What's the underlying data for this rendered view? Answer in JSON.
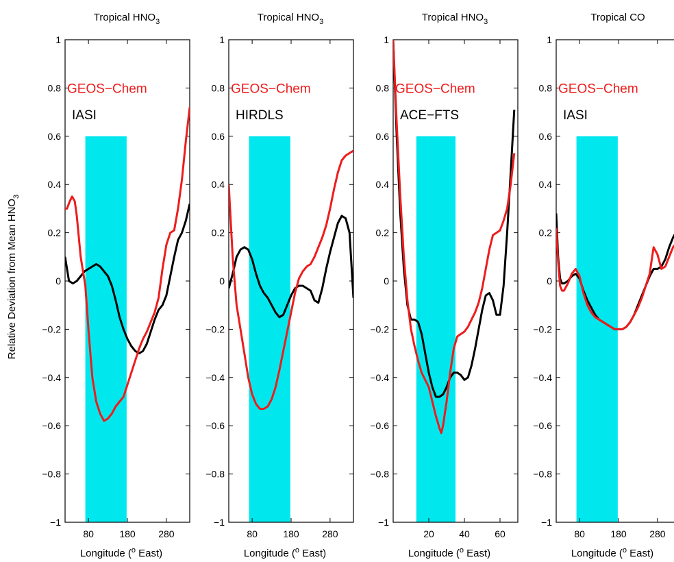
{
  "figure": {
    "ylabel": "Relative Deviation from Mean HNO",
    "ylabel_sub": "3",
    "xlabel_pre": "Longitude (",
    "xlabel_sup": "o",
    "xlabel_post": " East)",
    "highlight_color": "#00e8ee",
    "colors": {
      "model": "#ee1c1c",
      "obs": "#000000"
    }
  },
  "chart_data": [
    {
      "type": "line",
      "title": "Tropical HNO",
      "title_sub": "3",
      "xlim": [
        20,
        340
      ],
      "ylim": [
        -1,
        1
      ],
      "xticks": [
        80,
        180,
        280
      ],
      "yticks": [
        -1,
        -0.8,
        -0.6,
        -0.4,
        -0.2,
        0,
        0.2,
        0.4,
        0.6,
        0.8,
        1
      ],
      "ytick_labels": [
        "−1",
        "−0.8",
        "−0.6",
        "−0.4",
        "−0.2",
        "0",
        "0.2",
        "0.4",
        "0.6",
        "0.8",
        "1"
      ],
      "highlight": {
        "x": [
          72,
          178
        ],
        "y": [
          -1,
          0.6
        ]
      },
      "legend": [
        "GEOS−Chem",
        "IASI"
      ],
      "series": [
        {
          "name": "GEOS−Chem",
          "x": [
            20,
            25,
            32,
            38,
            45,
            50,
            60,
            72,
            80,
            90,
            100,
            110,
            120,
            130,
            140,
            150,
            160,
            170,
            180,
            190,
            200,
            210,
            220,
            230,
            240,
            250,
            260,
            270,
            280,
            290,
            300,
            310,
            320,
            330,
            340
          ],
          "y": [
            0.3,
            0.3,
            0.33,
            0.35,
            0.33,
            0.27,
            0.1,
            -0.02,
            -0.2,
            -0.4,
            -0.5,
            -0.55,
            -0.58,
            -0.57,
            -0.55,
            -0.52,
            -0.5,
            -0.48,
            -0.43,
            -0.38,
            -0.33,
            -0.28,
            -0.24,
            -0.21,
            -0.17,
            -0.13,
            -0.07,
            0.05,
            0.15,
            0.2,
            0.21,
            0.3,
            0.42,
            0.58,
            0.72
          ]
        },
        {
          "name": "IASI",
          "x": [
            20,
            30,
            40,
            50,
            60,
            70,
            80,
            90,
            100,
            110,
            120,
            130,
            140,
            150,
            160,
            170,
            180,
            190,
            200,
            210,
            220,
            230,
            240,
            250,
            260,
            270,
            280,
            290,
            300,
            310,
            320,
            330,
            340
          ],
          "y": [
            0.1,
            0.0,
            -0.01,
            0.0,
            0.02,
            0.04,
            0.05,
            0.06,
            0.07,
            0.06,
            0.04,
            0.02,
            -0.02,
            -0.08,
            -0.15,
            -0.2,
            -0.24,
            -0.27,
            -0.29,
            -0.3,
            -0.29,
            -0.26,
            -0.21,
            -0.16,
            -0.12,
            -0.1,
            -0.06,
            0.02,
            0.1,
            0.17,
            0.2,
            0.25,
            0.32
          ]
        }
      ]
    },
    {
      "type": "line",
      "title": "Tropical HNO",
      "title_sub": "3",
      "xlim": [
        20,
        340
      ],
      "ylim": [
        -1,
        1
      ],
      "xticks": [
        80,
        180,
        280
      ],
      "yticks": [
        -1,
        -0.8,
        -0.6,
        -0.4,
        -0.2,
        0,
        0.2,
        0.4,
        0.6,
        0.8,
        1
      ],
      "ytick_labels": [
        "−1",
        "−0.8",
        "−0.6",
        "−0.4",
        "−0.2",
        "0",
        "0.2",
        "0.4",
        "0.6",
        "0.8",
        "1"
      ],
      "highlight": {
        "x": [
          72,
          178
        ],
        "y": [
          -1,
          0.6
        ]
      },
      "legend": [
        "GEOS−Chem",
        "HIRDLS"
      ],
      "series": [
        {
          "name": "GEOS−Chem",
          "x": [
            20,
            25,
            30,
            35,
            40,
            50,
            60,
            70,
            80,
            90,
            100,
            110,
            120,
            130,
            140,
            150,
            160,
            170,
            180,
            190,
            200,
            210,
            220,
            230,
            240,
            250,
            260,
            270,
            280,
            290,
            300,
            310,
            320,
            330,
            340
          ],
          "y": [
            0.4,
            0.25,
            0.1,
            0.0,
            -0.1,
            -0.2,
            -0.3,
            -0.4,
            -0.47,
            -0.51,
            -0.53,
            -0.53,
            -0.52,
            -0.49,
            -0.44,
            -0.37,
            -0.29,
            -0.21,
            -0.13,
            -0.05,
            0.01,
            0.04,
            0.06,
            0.07,
            0.1,
            0.14,
            0.18,
            0.23,
            0.3,
            0.38,
            0.45,
            0.5,
            0.52,
            0.53,
            0.54
          ]
        },
        {
          "name": "HIRDLS",
          "x": [
            20,
            30,
            40,
            50,
            60,
            70,
            80,
            90,
            100,
            110,
            120,
            130,
            140,
            150,
            160,
            170,
            180,
            190,
            200,
            210,
            220,
            230,
            240,
            250,
            260,
            270,
            280,
            290,
            300,
            310,
            320,
            330,
            340
          ],
          "y": [
            -0.03,
            0.03,
            0.1,
            0.13,
            0.14,
            0.13,
            0.09,
            0.03,
            -0.02,
            -0.05,
            -0.07,
            -0.1,
            -0.13,
            -0.15,
            -0.14,
            -0.1,
            -0.06,
            -0.03,
            -0.02,
            -0.02,
            -0.03,
            -0.04,
            -0.08,
            -0.09,
            -0.03,
            0.05,
            0.12,
            0.18,
            0.24,
            0.27,
            0.26,
            0.2,
            -0.07
          ]
        }
      ]
    },
    {
      "type": "line",
      "title": "Tropical HNO",
      "title_sub": "3",
      "xlim": [
        0,
        70
      ],
      "ylim": [
        -1,
        1
      ],
      "xticks": [
        20,
        40,
        60
      ],
      "yticks": [
        -1,
        -0.8,
        -0.6,
        -0.4,
        -0.2,
        0,
        0.2,
        0.4,
        0.6,
        0.8,
        1
      ],
      "ytick_labels": [
        "−1",
        "−0.8",
        "−0.6",
        "−0.4",
        "−0.2",
        "0",
        "0.2",
        "0.4",
        "0.6",
        "0.8",
        "1"
      ],
      "highlight": {
        "x": [
          13,
          35
        ],
        "y": [
          -1,
          0.6
        ]
      },
      "legend": [
        "GEOS−Chem",
        "ACE−FTS"
      ],
      "series": [
        {
          "name": "GEOS−Chem",
          "x": [
            0,
            2,
            4,
            6,
            8,
            10,
            12,
            14,
            16,
            18,
            20,
            22,
            24,
            26,
            27,
            28,
            30,
            32,
            34,
            36,
            38,
            40,
            42,
            44,
            46,
            48,
            50,
            52,
            54,
            56,
            58,
            60,
            62,
            64,
            66,
            68
          ],
          "y": [
            1.0,
            0.65,
            0.35,
            0.1,
            -0.08,
            -0.2,
            -0.27,
            -0.33,
            -0.38,
            -0.41,
            -0.44,
            -0.5,
            -0.56,
            -0.61,
            -0.63,
            -0.6,
            -0.5,
            -0.38,
            -0.28,
            -0.23,
            -0.22,
            -0.21,
            -0.19,
            -0.16,
            -0.13,
            -0.09,
            -0.03,
            0.05,
            0.13,
            0.19,
            0.2,
            0.21,
            0.25,
            0.3,
            0.4,
            0.53
          ]
        },
        {
          "name": "ACE−FTS",
          "x": [
            0,
            2,
            4,
            6,
            8,
            10,
            12,
            14,
            16,
            18,
            20,
            22,
            24,
            26,
            28,
            30,
            32,
            34,
            36,
            38,
            40,
            42,
            44,
            46,
            48,
            50,
            52,
            54,
            56,
            58,
            60,
            62,
            64,
            66,
            68
          ],
          "y": [
            1.0,
            0.6,
            0.28,
            0.05,
            -0.1,
            -0.16,
            -0.16,
            -0.17,
            -0.22,
            -0.3,
            -0.38,
            -0.44,
            -0.48,
            -0.48,
            -0.47,
            -0.44,
            -0.4,
            -0.38,
            -0.38,
            -0.39,
            -0.41,
            -0.4,
            -0.35,
            -0.28,
            -0.2,
            -0.12,
            -0.06,
            -0.05,
            -0.08,
            -0.14,
            -0.14,
            -0.02,
            0.2,
            0.45,
            0.71
          ]
        }
      ]
    },
    {
      "type": "line",
      "title": "Tropical CO",
      "title_sub": "",
      "xlim": [
        20,
        340
      ],
      "ylim": [
        -1,
        1
      ],
      "xticks": [
        80,
        180,
        280
      ],
      "yticks": [
        -1,
        -0.8,
        -0.6,
        -0.4,
        -0.2,
        0,
        0.2,
        0.4,
        0.6,
        0.8,
        1
      ],
      "ytick_labels": [
        "−1",
        "−0.8",
        "−0.6",
        "−0.4",
        "−0.2",
        "0",
        "0.2",
        "0.4",
        "0.6",
        "0.8",
        "1"
      ],
      "highlight": {
        "x": [
          72,
          178
        ],
        "y": [
          -1,
          0.6
        ]
      },
      "legend": [
        "GEOS−Chem",
        "IASI"
      ],
      "series": [
        {
          "name": "GEOS−Chem",
          "x": [
            20,
            25,
            30,
            35,
            40,
            50,
            60,
            70,
            80,
            90,
            100,
            110,
            120,
            130,
            140,
            150,
            160,
            170,
            180,
            190,
            200,
            210,
            220,
            230,
            240,
            250,
            260,
            270,
            280,
            290,
            300,
            310,
            320,
            330,
            340
          ],
          "y": [
            0.22,
            0.08,
            -0.02,
            -0.04,
            -0.04,
            -0.01,
            0.03,
            0.05,
            0.02,
            -0.05,
            -0.1,
            -0.13,
            -0.15,
            -0.16,
            -0.17,
            -0.18,
            -0.19,
            -0.2,
            -0.2,
            -0.2,
            -0.19,
            -0.17,
            -0.14,
            -0.11,
            -0.07,
            -0.02,
            0.03,
            0.14,
            0.11,
            0.05,
            0.06,
            0.1,
            0.14,
            0.16,
            0.18
          ]
        },
        {
          "name": "IASI",
          "x": [
            20,
            25,
            30,
            35,
            40,
            50,
            60,
            70,
            80,
            90,
            100,
            110,
            120,
            130,
            140,
            150,
            160,
            170,
            180,
            190,
            200,
            210,
            220,
            230,
            240,
            250,
            260,
            270,
            280,
            290,
            300,
            310,
            320,
            330,
            340
          ],
          "y": [
            0.28,
            0.1,
            0.01,
            -0.01,
            -0.01,
            0.0,
            0.02,
            0.03,
            0.01,
            -0.04,
            -0.08,
            -0.11,
            -0.14,
            -0.16,
            -0.17,
            -0.18,
            -0.19,
            -0.2,
            -0.2,
            -0.2,
            -0.19,
            -0.17,
            -0.14,
            -0.1,
            -0.06,
            -0.02,
            0.02,
            0.05,
            0.05,
            0.06,
            0.09,
            0.14,
            0.18,
            0.21,
            0.23
          ]
        }
      ]
    }
  ]
}
